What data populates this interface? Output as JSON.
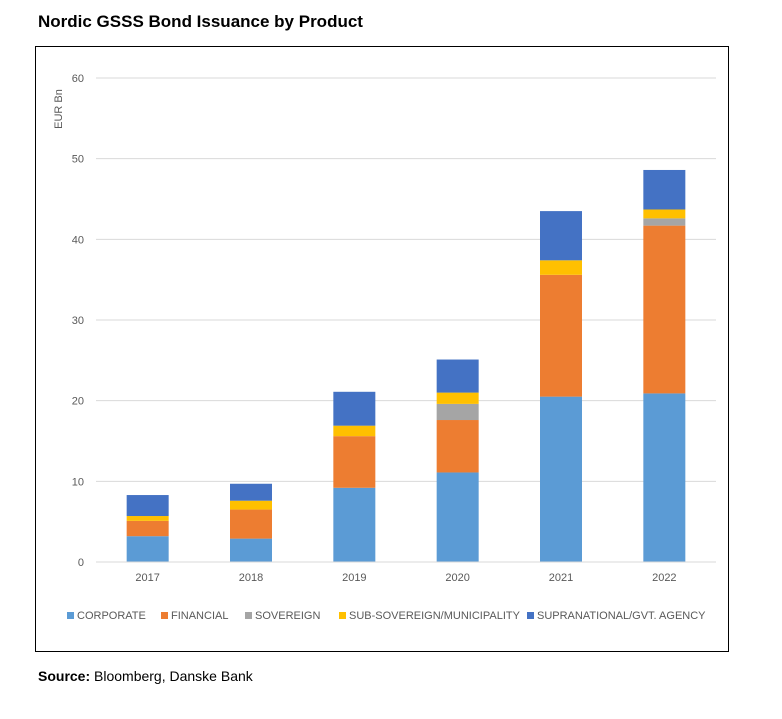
{
  "title": "Nordic GSSS Bond Issuance by Product",
  "source": {
    "label": "Source:",
    "text": "Bloomberg, Danske Bank"
  },
  "chart_data": {
    "type": "bar",
    "stacked": true,
    "ylabel": "EUR Bn",
    "ylim": [
      0,
      60
    ],
    "yticks": [
      0,
      10,
      20,
      30,
      40,
      50,
      60
    ],
    "grid": true,
    "legend_position": "bottom",
    "categories": [
      "2017",
      "2018",
      "2019",
      "2020",
      "2021",
      "2022"
    ],
    "series": [
      {
        "name": "CORPORATE",
        "color": "#5B9BD5",
        "values": [
          3.2,
          2.9,
          9.2,
          11.1,
          20.5,
          20.9
        ]
      },
      {
        "name": "FINANCIAL",
        "color": "#ED7D31",
        "values": [
          1.9,
          3.6,
          6.4,
          6.5,
          15.1,
          20.8
        ]
      },
      {
        "name": "SOVEREIGN",
        "color": "#A5A5A5",
        "values": [
          0,
          0,
          0,
          2.0,
          0,
          0.9
        ]
      },
      {
        "name": "SUB-SOVEREIGN/MUNICIPALITY",
        "color": "#FFC000",
        "values": [
          0.6,
          1.1,
          1.3,
          1.4,
          1.8,
          1.1
        ]
      },
      {
        "name": "SUPRANATIONAL/GVT. AGENCY",
        "color": "#4472C4",
        "values": [
          2.6,
          2.1,
          4.2,
          4.1,
          6.1,
          4.9
        ]
      }
    ]
  }
}
